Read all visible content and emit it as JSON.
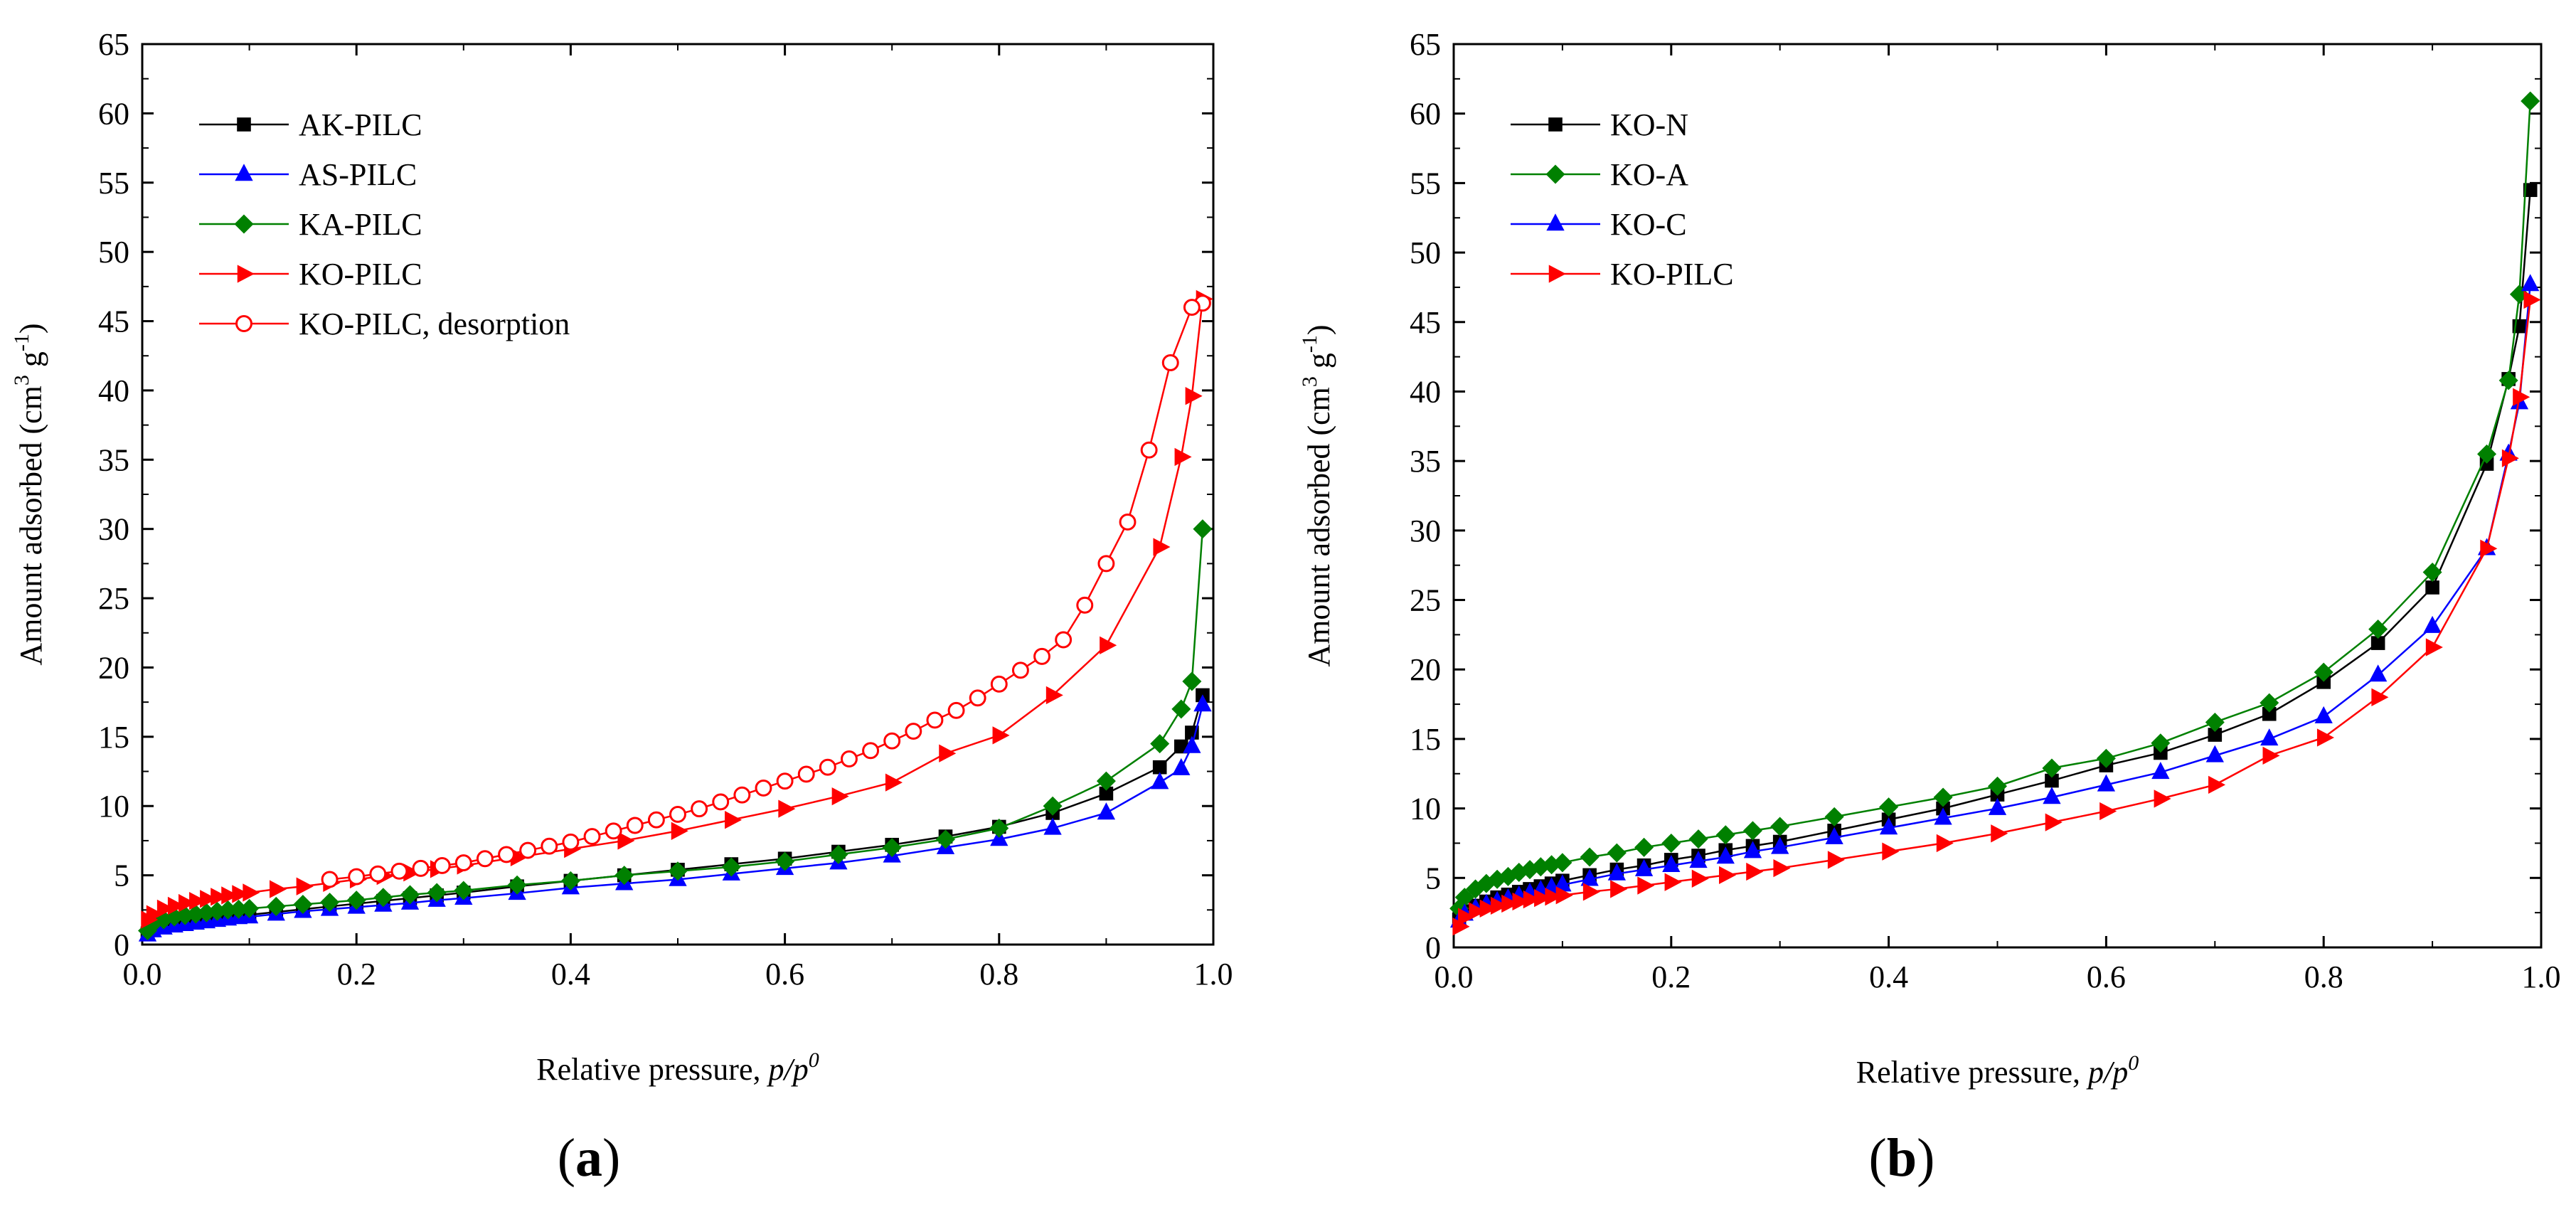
{
  "chart_data": [
    {
      "type": "line",
      "panel_label": "a",
      "xlabel_main": "Relative pressure, ",
      "xlabel_italic": "p/p",
      "xlabel_sup": "0",
      "ylabel_main": "Amount adsorbed (cm",
      "ylabel_sup1": "3",
      "ylabel_mid": " g",
      "ylabel_sup2": "-1",
      "ylabel_end": ")",
      "xlim": [
        0,
        1.0
      ],
      "ylim": [
        0,
        65
      ],
      "xticks": [
        "0.0",
        "0.2",
        "0.4",
        "0.6",
        "0.8",
        "1.0"
      ],
      "yticks": [
        "0",
        "5",
        "10",
        "15",
        "20",
        "25",
        "30",
        "35",
        "40",
        "45",
        "50",
        "55",
        "60",
        "65"
      ],
      "legend_position": "top-left",
      "series": [
        {
          "name": "AK-PILC",
          "color": "#000000",
          "marker": "square",
          "filled": true,
          "x": [
            0.005,
            0.01,
            0.02,
            0.03,
            0.04,
            0.05,
            0.06,
            0.07,
            0.08,
            0.09,
            0.1,
            0.125,
            0.15,
            0.175,
            0.2,
            0.225,
            0.25,
            0.275,
            0.3,
            0.35,
            0.4,
            0.45,
            0.5,
            0.55,
            0.6,
            0.65,
            0.7,
            0.75,
            0.8,
            0.85,
            0.9,
            0.95,
            0.97,
            0.98,
            0.99
          ],
          "y": [
            0.8,
            1.1,
            1.3,
            1.45,
            1.55,
            1.65,
            1.75,
            1.85,
            1.95,
            2.05,
            2.15,
            2.35,
            2.55,
            2.75,
            2.95,
            3.15,
            3.35,
            3.55,
            3.75,
            4.2,
            4.6,
            5.0,
            5.4,
            5.8,
            6.2,
            6.7,
            7.2,
            7.8,
            8.5,
            9.5,
            10.9,
            12.8,
            14.3,
            15.3,
            18.0
          ]
        },
        {
          "name": "AS-PILC",
          "color": "#0000ff",
          "marker": "triangle-up",
          "filled": true,
          "x": [
            0.005,
            0.01,
            0.02,
            0.03,
            0.04,
            0.05,
            0.06,
            0.07,
            0.08,
            0.09,
            0.1,
            0.125,
            0.15,
            0.175,
            0.2,
            0.225,
            0.25,
            0.275,
            0.3,
            0.35,
            0.4,
            0.45,
            0.5,
            0.55,
            0.6,
            0.65,
            0.7,
            0.75,
            0.8,
            0.85,
            0.9,
            0.95,
            0.97,
            0.98,
            0.99
          ],
          "y": [
            0.7,
            1.0,
            1.2,
            1.35,
            1.45,
            1.55,
            1.65,
            1.75,
            1.85,
            1.95,
            2.0,
            2.2,
            2.4,
            2.55,
            2.7,
            2.85,
            3.0,
            3.2,
            3.35,
            3.7,
            4.1,
            4.4,
            4.7,
            5.1,
            5.5,
            5.9,
            6.4,
            7.0,
            7.6,
            8.4,
            9.5,
            11.7,
            12.7,
            14.3,
            17.3
          ]
        },
        {
          "name": "KA-PILC",
          "color": "#008000",
          "marker": "diamond",
          "filled": true,
          "x": [
            0.005,
            0.01,
            0.02,
            0.03,
            0.04,
            0.05,
            0.06,
            0.07,
            0.08,
            0.09,
            0.1,
            0.125,
            0.15,
            0.175,
            0.2,
            0.225,
            0.25,
            0.275,
            0.3,
            0.35,
            0.4,
            0.45,
            0.5,
            0.55,
            0.6,
            0.65,
            0.7,
            0.75,
            0.8,
            0.85,
            0.9,
            0.95,
            0.97,
            0.98,
            0.99
          ],
          "y": [
            1.0,
            1.5,
            1.8,
            2.0,
            2.1,
            2.2,
            2.3,
            2.4,
            2.5,
            2.55,
            2.6,
            2.75,
            2.9,
            3.05,
            3.2,
            3.4,
            3.6,
            3.75,
            3.9,
            4.3,
            4.6,
            5.0,
            5.3,
            5.6,
            6.0,
            6.5,
            7.0,
            7.6,
            8.4,
            10.0,
            11.8,
            14.5,
            17.0,
            19.0,
            30.0
          ]
        },
        {
          "name": "KO-PILC",
          "color": "#ff0000",
          "marker": "triangle-right",
          "filled": true,
          "x": [
            0.005,
            0.01,
            0.02,
            0.03,
            0.04,
            0.05,
            0.06,
            0.07,
            0.08,
            0.09,
            0.1,
            0.125,
            0.15,
            0.175,
            0.2,
            0.225,
            0.25,
            0.275,
            0.3,
            0.35,
            0.4,
            0.45,
            0.5,
            0.55,
            0.6,
            0.65,
            0.7,
            0.75,
            0.8,
            0.85,
            0.9,
            0.95,
            0.97,
            0.98,
            0.99
          ],
          "y": [
            1.8,
            2.2,
            2.6,
            2.8,
            3.0,
            3.15,
            3.3,
            3.45,
            3.55,
            3.65,
            3.75,
            4.0,
            4.2,
            4.45,
            4.7,
            4.95,
            5.2,
            5.45,
            5.7,
            6.3,
            6.9,
            7.5,
            8.2,
            9.0,
            9.8,
            10.7,
            11.7,
            13.8,
            15.1,
            18.0,
            21.6,
            28.7,
            35.2,
            39.6,
            46.6
          ]
        },
        {
          "name": "KO-PILC, desorption",
          "color": "#ff0000",
          "marker": "circle",
          "filled": false,
          "x": [
            0.99,
            0.98,
            0.96,
            0.94,
            0.92,
            0.9,
            0.88,
            0.86,
            0.84,
            0.82,
            0.8,
            0.78,
            0.76,
            0.74,
            0.72,
            0.7,
            0.68,
            0.66,
            0.64,
            0.62,
            0.6,
            0.58,
            0.56,
            0.54,
            0.52,
            0.5,
            0.48,
            0.46,
            0.44,
            0.42,
            0.4,
            0.38,
            0.36,
            0.34,
            0.32,
            0.3,
            0.28,
            0.26,
            0.24,
            0.22,
            0.2,
            0.175
          ],
          "y": [
            46.3,
            46.0,
            42.0,
            35.7,
            30.5,
            27.5,
            24.5,
            22.0,
            20.8,
            19.8,
            18.8,
            17.8,
            16.9,
            16.2,
            15.4,
            14.7,
            14.0,
            13.4,
            12.8,
            12.3,
            11.8,
            11.3,
            10.8,
            10.3,
            9.8,
            9.4,
            9.0,
            8.6,
            8.2,
            7.8,
            7.4,
            7.1,
            6.8,
            6.5,
            6.2,
            5.9,
            5.7,
            5.5,
            5.3,
            5.1,
            4.9,
            4.7
          ]
        }
      ]
    },
    {
      "type": "line",
      "panel_label": "b",
      "xlabel_main": "Relative pressure, ",
      "xlabel_italic": "p/p",
      "xlabel_sup": "0",
      "ylabel_main": "Amount adsorbed (cm",
      "ylabel_sup1": "3",
      "ylabel_mid": " g",
      "ylabel_sup2": "-1",
      "ylabel_end": ")",
      "xlim": [
        0,
        1.0
      ],
      "ylim": [
        0,
        65
      ],
      "xticks": [
        "0.0",
        "0.2",
        "0.4",
        "0.6",
        "0.8",
        "1.0"
      ],
      "yticks": [
        "0",
        "5",
        "10",
        "15",
        "20",
        "25",
        "30",
        "35",
        "40",
        "45",
        "50",
        "55",
        "60",
        "65"
      ],
      "legend_position": "top-left",
      "series": [
        {
          "name": "KO-N",
          "color": "#000000",
          "marker": "square",
          "filled": true,
          "x": [
            0.005,
            0.01,
            0.02,
            0.03,
            0.04,
            0.05,
            0.06,
            0.07,
            0.08,
            0.09,
            0.1,
            0.125,
            0.15,
            0.175,
            0.2,
            0.225,
            0.25,
            0.275,
            0.3,
            0.35,
            0.4,
            0.45,
            0.5,
            0.55,
            0.6,
            0.65,
            0.7,
            0.75,
            0.8,
            0.85,
            0.9,
            0.95,
            0.97,
            0.98,
            0.99
          ],
          "y": [
            2.0,
            2.6,
            3.0,
            3.3,
            3.6,
            3.8,
            4.0,
            4.2,
            4.4,
            4.6,
            4.8,
            5.2,
            5.6,
            5.9,
            6.3,
            6.6,
            7.0,
            7.3,
            7.6,
            8.4,
            9.2,
            10.0,
            11.0,
            12.0,
            13.1,
            14.0,
            15.3,
            16.8,
            19.1,
            21.9,
            25.9,
            34.8,
            40.9,
            44.7,
            54.5
          ]
        },
        {
          "name": "KO-A",
          "color": "#008000",
          "marker": "diamond",
          "filled": true,
          "x": [
            0.005,
            0.01,
            0.02,
            0.03,
            0.04,
            0.05,
            0.06,
            0.07,
            0.08,
            0.09,
            0.1,
            0.125,
            0.15,
            0.175,
            0.2,
            0.225,
            0.25,
            0.275,
            0.3,
            0.35,
            0.4,
            0.45,
            0.5,
            0.55,
            0.6,
            0.65,
            0.7,
            0.75,
            0.8,
            0.85,
            0.9,
            0.95,
            0.97,
            0.98,
            0.99
          ],
          "y": [
            2.8,
            3.6,
            4.2,
            4.6,
            4.9,
            5.1,
            5.4,
            5.6,
            5.8,
            5.95,
            6.1,
            6.5,
            6.8,
            7.2,
            7.5,
            7.8,
            8.1,
            8.4,
            8.7,
            9.4,
            10.1,
            10.8,
            11.6,
            12.9,
            13.6,
            14.7,
            16.2,
            17.6,
            19.8,
            22.9,
            27.0,
            35.5,
            40.8,
            47.0,
            60.9
          ]
        },
        {
          "name": "KO-C",
          "color": "#0000ff",
          "marker": "triangle-up",
          "filled": true,
          "x": [
            0.005,
            0.01,
            0.02,
            0.03,
            0.04,
            0.05,
            0.06,
            0.07,
            0.08,
            0.09,
            0.1,
            0.125,
            0.15,
            0.175,
            0.2,
            0.225,
            0.25,
            0.275,
            0.3,
            0.35,
            0.4,
            0.45,
            0.5,
            0.55,
            0.6,
            0.65,
            0.7,
            0.75,
            0.8,
            0.85,
            0.9,
            0.95,
            0.97,
            0.98,
            0.99
          ],
          "y": [
            1.9,
            2.4,
            2.8,
            3.1,
            3.3,
            3.5,
            3.7,
            3.9,
            4.1,
            4.3,
            4.5,
            4.9,
            5.3,
            5.6,
            5.9,
            6.2,
            6.5,
            6.9,
            7.2,
            7.9,
            8.6,
            9.3,
            10.0,
            10.8,
            11.7,
            12.6,
            13.8,
            15.0,
            16.6,
            19.6,
            23.1,
            28.7,
            35.5,
            39.2,
            47.7
          ]
        },
        {
          "name": "KO-PILC",
          "color": "#ff0000",
          "marker": "triangle-right",
          "filled": true,
          "x": [
            0.005,
            0.01,
            0.02,
            0.03,
            0.04,
            0.05,
            0.06,
            0.07,
            0.08,
            0.09,
            0.1,
            0.125,
            0.15,
            0.175,
            0.2,
            0.225,
            0.25,
            0.275,
            0.3,
            0.35,
            0.4,
            0.45,
            0.5,
            0.55,
            0.6,
            0.65,
            0.7,
            0.75,
            0.8,
            0.85,
            0.9,
            0.95,
            0.97,
            0.98,
            0.99
          ],
          "y": [
            1.5,
            2.2,
            2.6,
            2.8,
            3.0,
            3.15,
            3.3,
            3.45,
            3.55,
            3.65,
            3.75,
            4.0,
            4.2,
            4.45,
            4.7,
            4.95,
            5.2,
            5.45,
            5.7,
            6.3,
            6.9,
            7.5,
            8.2,
            9.0,
            9.8,
            10.7,
            11.7,
            13.8,
            15.1,
            18.0,
            21.6,
            28.7,
            35.2,
            39.6,
            46.6
          ]
        }
      ]
    }
  ]
}
